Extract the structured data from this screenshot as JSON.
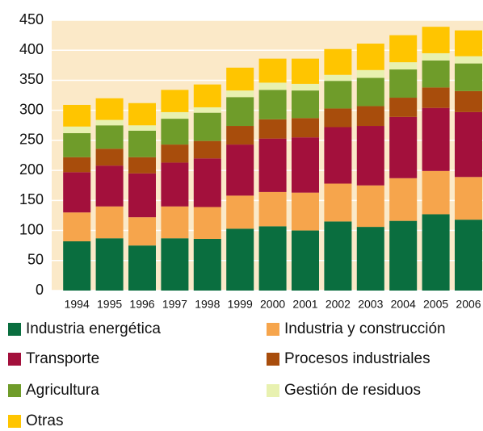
{
  "chart_data": {
    "type": "stacked_bar",
    "categories": [
      "1994",
      "1995",
      "1996",
      "1997",
      "1998",
      "1999",
      "2000",
      "2001",
      "2002",
      "2003",
      "2004",
      "2005",
      "2006"
    ],
    "series": [
      {
        "name": "Industria energética",
        "color": "#0a6e3f",
        "values": [
          82,
          87,
          75,
          87,
          86,
          103,
          107,
          100,
          115,
          106,
          116,
          127,
          118
        ]
      },
      {
        "name": "Industria y construcción",
        "color": "#f6a54c",
        "values": [
          48,
          53,
          47,
          53,
          53,
          55,
          57,
          63,
          63,
          69,
          71,
          72,
          71
        ]
      },
      {
        "name": "Transporte",
        "color": "#a3103c",
        "values": [
          67,
          68,
          73,
          73,
          81,
          85,
          89,
          92,
          94,
          99,
          102,
          105,
          108
        ]
      },
      {
        "name": "Procesos industriales",
        "color": "#a84d0c",
        "values": [
          25,
          28,
          27,
          30,
          29,
          31,
          32,
          32,
          31,
          33,
          32,
          34,
          35
        ]
      },
      {
        "name": "Agricultura",
        "color": "#6f9c2a",
        "values": [
          40,
          39,
          44,
          43,
          47,
          48,
          49,
          46,
          46,
          47,
          47,
          45,
          46
        ]
      },
      {
        "name": "Gestión de residuos",
        "color": "#e8f1b0",
        "values": [
          11,
          9,
          9,
          11,
          9,
          11,
          12,
          11,
          10,
          13,
          12,
          12,
          12
        ]
      },
      {
        "name": "Otras",
        "color": "#ffc500",
        "values": [
          36,
          36,
          37,
          37,
          38,
          38,
          40,
          42,
          43,
          44,
          45,
          44,
          43
        ]
      }
    ],
    "ylim": [
      0,
      450
    ],
    "yticks": [
      0,
      50,
      100,
      150,
      200,
      250,
      300,
      350,
      400,
      450
    ],
    "grid": true
  }
}
